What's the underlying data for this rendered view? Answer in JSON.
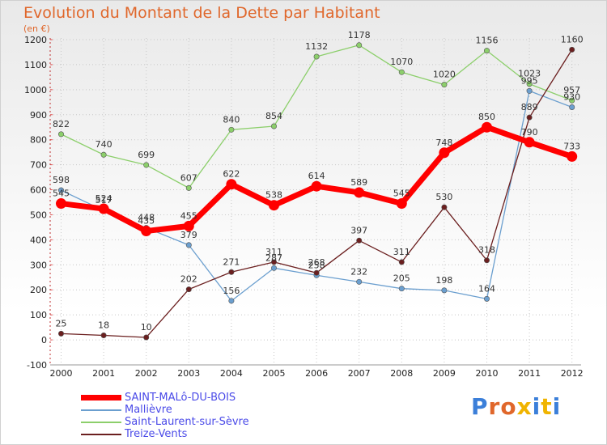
{
  "title": "Evolution du Montant de la Dette par Habitant",
  "unit_label": "(en €)",
  "brand": "Proxiti",
  "chart_data": {
    "type": "line",
    "title": "Evolution du Montant de la Dette par Habitant",
    "ylabel": "(en €)",
    "xlabel": "",
    "x": [
      "2000",
      "2001",
      "2002",
      "2003",
      "2004",
      "2005",
      "2006",
      "2007",
      "2008",
      "2009",
      "2010",
      "2011",
      "2012"
    ],
    "ylim": [
      -100,
      1200
    ],
    "yticks": [
      -100,
      0,
      100,
      200,
      300,
      400,
      500,
      600,
      700,
      800,
      900,
      1000,
      1100,
      1200
    ],
    "grid": true,
    "legend_position": "bottom-left",
    "series": [
      {
        "name": "SAINT-MALô-DU-BOIS",
        "color": "#ff0000",
        "values": [
          545,
          524,
          435,
          455,
          622,
          538,
          614,
          589,
          545,
          748,
          850,
          790,
          733
        ]
      },
      {
        "name": "Mallièvre",
        "color": "#6b9fcf",
        "values": [
          598,
          517,
          448,
          379,
          156,
          287,
          258,
          232,
          205,
          198,
          164,
          995,
          930
        ]
      },
      {
        "name": "Saint-Laurent-sur-Sèvre",
        "color": "#8ccf6b",
        "values": [
          822,
          740,
          699,
          607,
          840,
          854,
          1132,
          1178,
          1070,
          1020,
          1156,
          1023,
          957
        ]
      },
      {
        "name": "Treize-Vents",
        "color": "#6b1f1f",
        "values": [
          25,
          18,
          10,
          202,
          271,
          311,
          268,
          397,
          311,
          530,
          318,
          889,
          1160
        ]
      }
    ]
  }
}
